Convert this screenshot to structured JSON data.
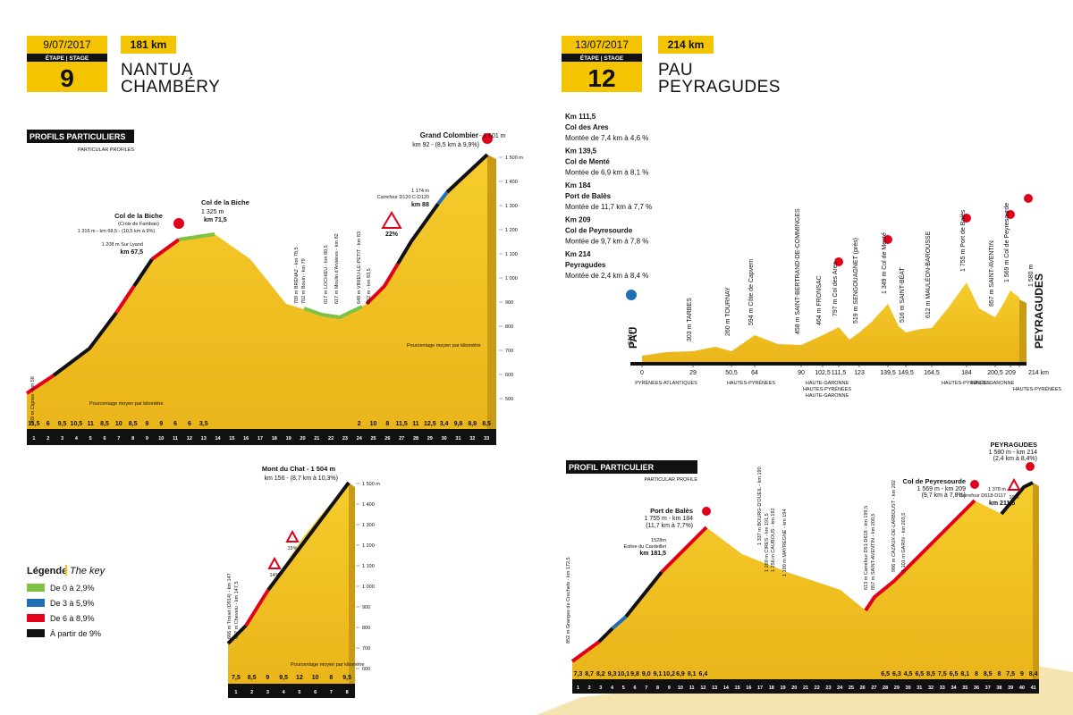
{
  "stage9": {
    "date": "9/07/2017",
    "distance": "181 km",
    "label": "ÉTAPE | STAGE",
    "number": "9",
    "start": "NANTUA",
    "finish": "CHAMBÉRY"
  },
  "stage12": {
    "date": "13/07/2017",
    "distance": "214 km",
    "label": "ÉTAPE | STAGE",
    "number": "12",
    "start": "PAU",
    "finish": "PEYRAGUDES"
  },
  "profiles9": {
    "title": "PROFILS PARTICULIERS",
    "subtitle": "PARTICULAR PROFILES"
  },
  "colombier": {
    "summit_name": "Grand Colombier",
    "summit_alt": "- 1 501 m",
    "summit_km": "km 92 - (8,5 km à 9,9%)",
    "biche_name": "Col de la Biche",
    "biche_sub": "(Croix de Famban)",
    "biche_info": "1 316 m - km 68,5 - (10,5 km à 9%)",
    "biche2_name": "Col de la Biche",
    "biche2_alt": "1 325 m",
    "biche2_km": "km 71,5",
    "sur_lyand": "1 208 m Sur Lyand",
    "sur_lyand_km": "km 67,5",
    "carrefour_alt": "1 174 m",
    "carrefour_road": "Carrefour D120 C-D120",
    "carrefour_km": "km 88",
    "steep": "22%",
    "start": "369 m Cignes - km 58",
    "points": [
      "709 m BRÉNAZ - km 78,5",
      "702 m Bouin - km 79",
      "617 m LOCHIEU - km 80,5",
      "617 m Moulin d'Arvières - km 82",
      "648 m VIRIEU-LE-PETIT - km 83",
      "852 m - km 83,5"
    ],
    "avg_note": "Pourcentage moyen par kilomètre",
    "km_marks": [
      "1",
      "2",
      "3",
      "4",
      "5",
      "6",
      "7",
      "8",
      "9",
      "10",
      "11",
      "12",
      "13",
      "14",
      "15",
      "16",
      "17",
      "18",
      "19",
      "20",
      "21",
      "22",
      "23",
      "24",
      "25",
      "26",
      "27",
      "28",
      "29",
      "30",
      "31",
      "32",
      "33"
    ],
    "gradients": [
      "11,5",
      "6",
      "9,5",
      "10,5",
      "11",
      "8,5",
      "10",
      "8,5",
      "9",
      "9",
      "6",
      "6",
      "3,5",
      null,
      null,
      null,
      null,
      null,
      null,
      null,
      null,
      null,
      null,
      "2",
      "10",
      "8",
      "11,5",
      "11",
      "12,5",
      "3,4",
      "9,8",
      "8,8",
      "8,5",
      null
    ],
    "alt_ticks": [
      "1 500 m",
      "1 400",
      "1 300",
      "1 200",
      "1 100",
      "1 000",
      "900",
      "800",
      "700",
      "600",
      "500"
    ]
  },
  "chat": {
    "summit": "Mont du Chat - 1 504 m",
    "summit_km": "km 156 - (8,7 km à 10,3%)",
    "steep1": "15%",
    "steep2": "14%",
    "start1": "666 m Trouet (D914) - km 147",
    "start2": "627 m Chevelu - km 147,5",
    "avg_note": "Pourcentage moyen par kilomètre",
    "km_marks": [
      "1",
      "2",
      "3",
      "4",
      "5",
      "6",
      "7",
      "8"
    ],
    "gradients": [
      "7,5",
      "8,5",
      "9",
      "9,5",
      "12",
      "10",
      "8",
      "9,5"
    ],
    "alt_ticks": [
      "1 500 m",
      "1 400",
      "1 300",
      "1 200",
      "1 100",
      "1 000",
      "900",
      "800",
      "700",
      "600"
    ]
  },
  "legend": {
    "title": "Légende",
    "subtitle": "The key",
    "items": [
      "De 0 à 2,9%",
      "De 3 à 5,9%",
      "De 6 à 8,9%",
      "À partir de 9%"
    ]
  },
  "climbs12": [
    {
      "km": "Km 111,5",
      "name": "Col des Ares",
      "climb": "Montée de 7,4 km à 4,6 %"
    },
    {
      "km": "Km 139,5",
      "name": "Col de Menté",
      "climb": "Montée de 6,9 km à 8,1 %"
    },
    {
      "km": "Km 184",
      "name": "Port de Balès",
      "climb": "Montée de 11,7 km à 7,7 %"
    },
    {
      "km": "Km 209",
      "name": "Col de Peyresourde",
      "climb": "Montée de 9,7 km à 7,8 %"
    },
    {
      "km": "Km 214",
      "name": "Peyragudes",
      "climb": "Montée de 2,4 km à 8,4 %"
    }
  ],
  "stage12_profile": {
    "towns": [
      "244 m",
      "303 m TARBES",
      "260 m TOURNAY",
      "594 m Côte de Capvern",
      "458 m SAINT-BERTRAND-DE-COMMINGES",
      "464 m FRONSAC",
      "797 m Col des Ares",
      "519 m SENGOUAGNET (près)",
      "1 349 m Col de Menté",
      "516 m SAINT-BÉAT",
      "612 m MAULÉON-BAROUSSE",
      "1 755 m Port de Balès",
      "857 m SAINT-AVENTIN",
      "1 569 m Col de Peyresourde",
      "1 580 m"
    ],
    "start_town": "PAU",
    "finish_town": "PEYRAGUDES",
    "km": [
      "0",
      "29",
      "50,5",
      "64",
      "90",
      "102,5",
      "111,5",
      "123",
      "139,5",
      "149,5",
      "164,5",
      "184",
      "200,5",
      "209",
      "214 km"
    ],
    "departments": [
      "PYRÉNÉES-ATLANTIQUES",
      "HAUTES-PYRÉNÉES",
      "HAUTE-GARONNE",
      "HAUTES-PYRÉNÉES",
      "HAUTE-GARONNE",
      "HAUTES-PYRÉNÉES",
      "HAUTE-GARONNE",
      "HAUTES-PYRÉNÉES"
    ]
  },
  "profile12": {
    "title": "PROFIL PARTICULIER",
    "subtitle": "PARTICULAR PROFILE",
    "bales_name": "Port de Balès",
    "bales_info": "1 755 m - km 184",
    "bales_climb": "(11,7 km à 7,7%)",
    "estive": "1528m",
    "estive_name": "Estive du Cardeillet",
    "estive_km": "km 181,5",
    "peyresourde_name": "Col de Peyresourde",
    "peyresourde_info": "1 569 m - km 209",
    "peyresourde_climb": "(9,7 km à 7,8%)",
    "peyragudes_name": "PEYRAGUDES",
    "peyragudes_info": "1 580 m - km 214",
    "peyragudes_climb": "(2,4 km à 8,4%)",
    "carrefour_alt": "1 378 m",
    "carrefour_road": "Carrefour D618-D117",
    "carrefour_km": "km 211,5",
    "steep": "10%",
    "points": [
      "852 m Granges de Crechets - km 172,5",
      "1 337 m BOURG-D'OUEIL - km 190",
      "1 269 m CIRES - km 191,5",
      "1 256 m CAUBOUS - km 192",
      "1 190 m MAYREGNE - km 194",
      "613 m Carrefour D51-D618 - km 199,5",
      "857 m SAINT-AVENTIN - km 200,5",
      "986 m CAZAUX-DE-LARBOUST - km 202",
      "1 101 m GARIN - km 203,5"
    ],
    "km_marks": [
      "1",
      "2",
      "3",
      "4",
      "5",
      "6",
      "7",
      "8",
      "9",
      "10",
      "11",
      "12",
      "13",
      "14",
      "15",
      "16",
      "17",
      "18",
      "19",
      "20",
      "21",
      "22",
      "23",
      "24",
      "25",
      "26",
      "27",
      "28",
      "29",
      "30",
      "31",
      "32",
      "33",
      "34",
      "35",
      "36",
      "37",
      "38",
      "39",
      "40",
      "41"
    ],
    "gradients": [
      "7,3",
      "8,7",
      "8,2",
      "9,3",
      "10,1",
      "9,8",
      "9,0",
      "9,1",
      "10,2",
      "6,9",
      "8,1",
      "6,4",
      null,
      null,
      null,
      null,
      null,
      null,
      null,
      null,
      null,
      null,
      null,
      null,
      null,
      null,
      null,
      "6,5",
      "6,3",
      "4,5",
      "6,5",
      "8,5",
      "7,5",
      "6,5",
      "8,1",
      "8",
      "8,5",
      "8",
      "7,5",
      "9",
      "8,4"
    ]
  }
}
